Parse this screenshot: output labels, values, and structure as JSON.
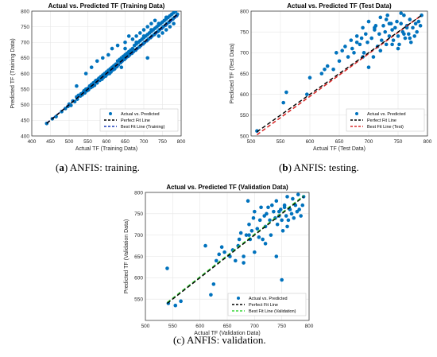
{
  "colors": {
    "points": "#0072BD",
    "perfect": "#000000",
    "best_training": "#1a3cb8",
    "best_test": "#d92b2b",
    "best_validation": "#3ad63a",
    "grid": "#e6e6e6",
    "axes": "#262626"
  },
  "captions": [
    {
      "label": "a",
      "text": "ANFIS: training."
    },
    {
      "label": "b",
      "text": "ANFIS: testing."
    },
    {
      "label": "c",
      "text": "ANFIS: validation."
    }
  ],
  "chart_data": [
    {
      "type": "scatter",
      "title": "Actual vs. Predicted TF (Training Data)",
      "xlabel": "Actual TF (Training Data)",
      "ylabel": "Predicted TF (Training Data)",
      "xlim": [
        400,
        800
      ],
      "ylim": [
        400,
        800
      ],
      "xticks": [
        400,
        450,
        500,
        550,
        600,
        650,
        700,
        750,
        800
      ],
      "yticks": [
        400,
        450,
        500,
        550,
        600,
        650,
        700,
        750,
        800
      ],
      "grid": true,
      "legend_position": "lower-right",
      "series": [
        {
          "name": "Actual vs. Predicted",
          "kind": "scatter",
          "x": [
            440,
            455,
            465,
            480,
            490,
            497,
            500,
            505,
            510,
            515,
            520,
            522,
            525,
            530,
            532,
            535,
            538,
            540,
            542,
            545,
            548,
            550,
            552,
            555,
            558,
            560,
            562,
            565,
            568,
            570,
            572,
            575,
            578,
            580,
            582,
            585,
            588,
            590,
            592,
            595,
            598,
            600,
            602,
            605,
            608,
            610,
            612,
            615,
            618,
            620,
            622,
            625,
            628,
            630,
            632,
            635,
            638,
            640,
            642,
            645,
            648,
            650,
            652,
            655,
            658,
            660,
            662,
            665,
            668,
            670,
            672,
            675,
            678,
            680,
            682,
            685,
            688,
            690,
            692,
            695,
            698,
            700,
            702,
            705,
            708,
            710,
            712,
            715,
            718,
            720,
            722,
            725,
            728,
            730,
            732,
            735,
            738,
            740,
            742,
            745,
            748,
            750,
            752,
            755,
            758,
            760,
            762,
            765,
            768,
            770,
            772,
            775,
            778,
            780,
            782,
            785,
            788,
            790,
            520,
            545,
            560,
            575,
            590,
            605,
            615,
            630,
            640,
            650,
            660,
            670,
            680,
            690,
            700,
            710,
            720,
            730,
            740,
            750,
            760,
            770,
            780,
            700,
            720,
            740,
            760,
            650,
            680,
            710
          ],
          "y": [
            440,
            455,
            462,
            478,
            488,
            495,
            502,
            498,
            512,
            510,
            525,
            518,
            530,
            528,
            535,
            532,
            540,
            545,
            538,
            550,
            545,
            552,
            548,
            560,
            555,
            565,
            558,
            570,
            562,
            575,
            578,
            570,
            582,
            585,
            578,
            590,
            582,
            595,
            588,
            600,
            592,
            605,
            598,
            610,
            600,
            615,
            605,
            620,
            612,
            625,
            615,
            630,
            622,
            640,
            628,
            645,
            635,
            650,
            640,
            655,
            645,
            660,
            650,
            665,
            655,
            670,
            660,
            675,
            665,
            680,
            670,
            690,
            675,
            695,
            680,
            700,
            685,
            705,
            690,
            710,
            695,
            715,
            700,
            720,
            705,
            725,
            710,
            730,
            715,
            735,
            720,
            740,
            725,
            745,
            730,
            750,
            735,
            755,
            740,
            760,
            745,
            765,
            750,
            770,
            755,
            775,
            760,
            780,
            765,
            785,
            770,
            790,
            775,
            795,
            780,
            800,
            785,
            790,
            560,
            600,
            620,
            640,
            650,
            660,
            680,
            690,
            620,
            700,
            720,
            710,
            720,
            730,
            740,
            750,
            760,
            770,
            720,
            730,
            740,
            750,
            760,
            720,
            740,
            760,
            780,
            680,
            700,
            650
          ]
        },
        {
          "name": "Perfect Fit Line",
          "kind": "line",
          "x": [
            440,
            790
          ],
          "y": [
            440,
            790
          ]
        },
        {
          "name": "Best Fit Line (Training)",
          "kind": "line",
          "x": [
            440,
            790
          ],
          "y": [
            441,
            787
          ]
        }
      ]
    },
    {
      "type": "scatter",
      "title": "Actual vs. Predicted TF (Test Data)",
      "xlabel": "Actual TF (Test Data)",
      "ylabel": "Predicted TF (Test Data)",
      "xlim": [
        500,
        800
      ],
      "ylim": [
        500,
        800
      ],
      "xticks": [
        500,
        550,
        600,
        650,
        700,
        750,
        800
      ],
      "yticks": [
        500,
        550,
        600,
        650,
        700,
        750,
        800
      ],
      "grid": true,
      "legend_position": "lower-right",
      "series": [
        {
          "name": "Actual vs. Predicted",
          "kind": "scatter",
          "x": [
            510,
            555,
            560,
            595,
            600,
            620,
            625,
            630,
            640,
            645,
            650,
            655,
            660,
            665,
            670,
            672,
            675,
            680,
            685,
            688,
            690,
            692,
            695,
            698,
            700,
            705,
            708,
            710,
            712,
            715,
            718,
            720,
            722,
            725,
            728,
            730,
            732,
            735,
            738,
            740,
            742,
            745,
            748,
            750,
            752,
            755,
            758,
            760,
            762,
            765,
            768,
            770,
            772,
            775,
            778,
            780,
            782,
            785,
            788,
            790,
            700,
            720,
            740,
            760,
            680,
            710,
            730,
            750,
            770,
            690,
            735,
            755,
            765
          ],
          "y": [
            512,
            580,
            605,
            600,
            640,
            650,
            660,
            668,
            660,
            700,
            680,
            705,
            715,
            690,
            730,
            710,
            700,
            740,
            720,
            735,
            760,
            700,
            745,
            725,
            775,
            735,
            690,
            755,
            765,
            715,
            745,
            785,
            730,
            765,
            750,
            720,
            790,
            740,
            770,
            755,
            730,
            760,
            775,
            740,
            720,
            770,
            750,
            790,
            735,
            765,
            745,
            780,
            725,
            760,
            740,
            770,
            750,
            775,
            765,
            790,
            665,
            705,
            720,
            745,
            725,
            760,
            780,
            710,
            735,
            690,
            770,
            795,
            760
          ]
        },
        {
          "name": "Perfect Fit Line",
          "kind": "line",
          "x": [
            510,
            790
          ],
          "y": [
            510,
            790
          ]
        },
        {
          "name": "Best Fit Line (Test)",
          "kind": "line",
          "x": [
            510,
            790
          ],
          "y": [
            503,
            790
          ]
        }
      ]
    },
    {
      "type": "scatter",
      "title": "Actual vs. Predicted TF (Validation Data)",
      "xlabel": "Actual TF (Validation Data)",
      "ylabel": "Predicted TF (Validation Data)",
      "xlim": [
        500,
        800
      ],
      "ylim": [
        500,
        800
      ],
      "xticks": [
        500,
        550,
        600,
        650,
        700,
        750,
        800
      ],
      "yticks": [
        550,
        600,
        650,
        700,
        750,
        800
      ],
      "grid": true,
      "legend_position": "lower-right",
      "series": [
        {
          "name": "Actual vs. Predicted",
          "kind": "scatter",
          "x": [
            540,
            542,
            555,
            565,
            610,
            620,
            625,
            630,
            635,
            640,
            645,
            655,
            660,
            665,
            670,
            672,
            675,
            680,
            685,
            688,
            690,
            692,
            695,
            698,
            700,
            705,
            708,
            710,
            712,
            715,
            718,
            720,
            722,
            725,
            728,
            730,
            732,
            735,
            738,
            740,
            742,
            745,
            748,
            750,
            752,
            755,
            758,
            760,
            762,
            765,
            768,
            770,
            772,
            775,
            778,
            780,
            782,
            785,
            788,
            790,
            680,
            700,
            720,
            740,
            760,
            690,
            745,
            750,
            755
          ],
          "y": [
            622,
            540,
            535,
            545,
            675,
            560,
            585,
            640,
            655,
            672,
            660,
            650,
            665,
            640,
            675,
            690,
            705,
            650,
            700,
            780,
            725,
            690,
            710,
            740,
            755,
            715,
            695,
            735,
            765,
            690,
            745,
            720,
            750,
            765,
            735,
            700,
            770,
            755,
            740,
            780,
            725,
            745,
            760,
            735,
            710,
            770,
            745,
            790,
            735,
            760,
            750,
            785,
            740,
            770,
            755,
            795,
            760,
            745,
            770,
            790,
            635,
            660,
            680,
            650,
            720,
            700,
            755,
            595,
            765
          ]
        },
        {
          "name": "Perfect Fit Line",
          "kind": "line",
          "x": [
            540,
            790
          ],
          "y": [
            540,
            790
          ]
        },
        {
          "name": "Best Fit Line (Validation)",
          "kind": "line",
          "x": [
            540,
            790
          ],
          "y": [
            542,
            792
          ]
        }
      ]
    }
  ]
}
